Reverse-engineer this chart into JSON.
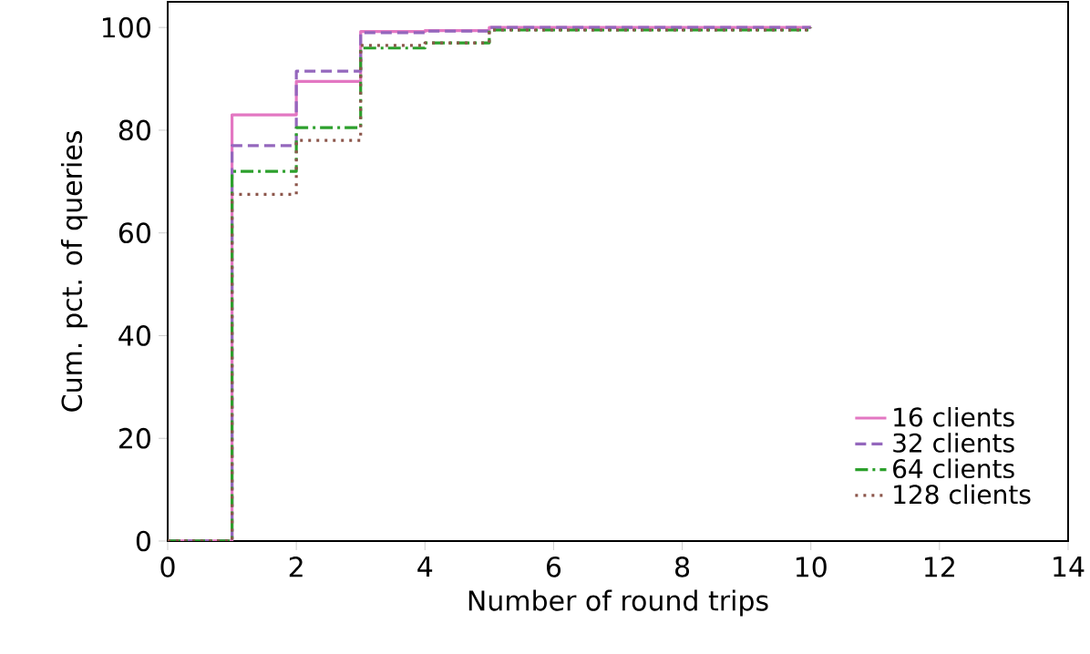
{
  "chart_data": {
    "type": "step",
    "xlabel": "Number of round trips",
    "ylabel": "Cum. pct. of queries",
    "x": [
      0,
      1,
      2,
      3,
      4,
      5,
      10
    ],
    "series": [
      {
        "name": "16 clients",
        "color": "#e377c2",
        "line_style": "solid",
        "values": [
          0,
          83,
          89.5,
          99.2,
          99.4,
          100,
          100
        ]
      },
      {
        "name": "32 clients",
        "color": "#9467bd",
        "line_style": "dashed",
        "values": [
          0,
          77,
          91.5,
          99,
          99.3,
          100,
          100
        ]
      },
      {
        "name": "64 clients",
        "color": "#2ca02c",
        "line_style": "dashdot",
        "values": [
          0,
          72,
          80.5,
          96,
          97,
          99.5,
          100
        ]
      },
      {
        "name": "128 clients",
        "color": "#8c564b",
        "line_style": "dotted",
        "values": [
          0,
          67.5,
          78,
          96.5,
          97,
          99.5,
          100
        ]
      }
    ],
    "xlim": [
      0,
      14
    ],
    "xticks": [
      0,
      2,
      4,
      6,
      8,
      10,
      12,
      14
    ],
    "ylim": [
      0,
      105
    ],
    "yticks": [
      0,
      20,
      40,
      60,
      80,
      100
    ],
    "legend": "bottom right",
    "grid": false
  }
}
